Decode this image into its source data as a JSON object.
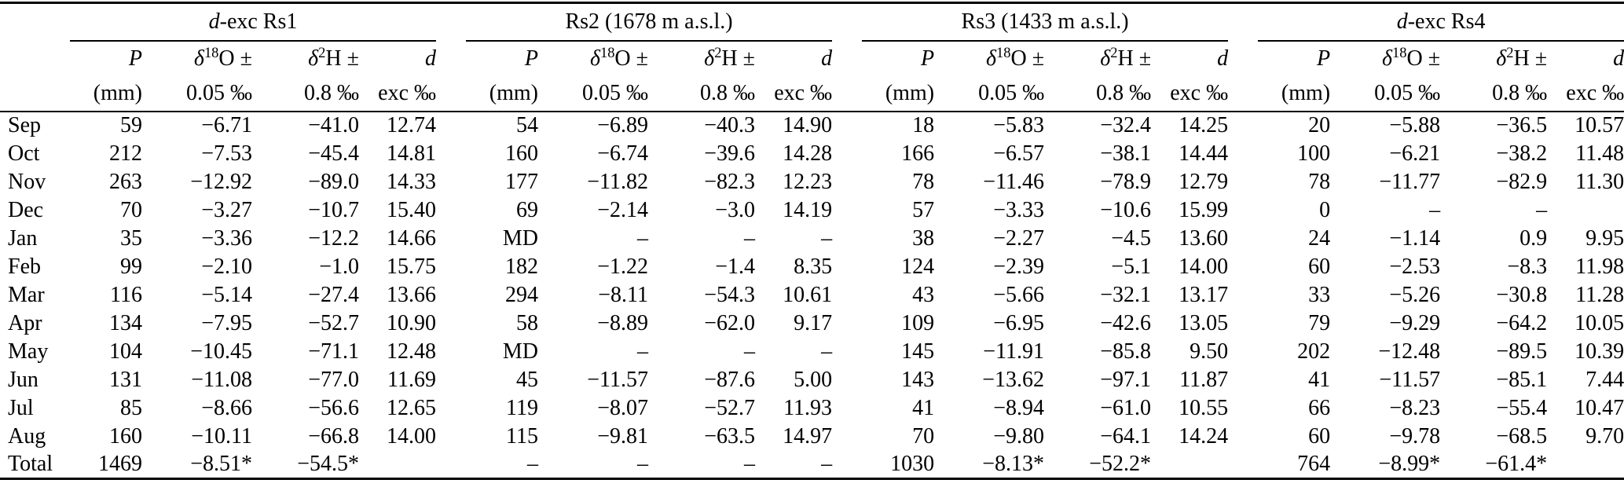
{
  "table": {
    "groups": [
      {
        "title_italic": "d",
        "title_rest": "-exc Rs1"
      },
      {
        "title_italic": "",
        "title_rest": "Rs2 (1678 m a.s.l.)"
      },
      {
        "title_italic": "",
        "title_rest": "Rs3 (1433 m a.s.l.)"
      },
      {
        "title_italic": "d",
        "title_rest": "-exc Rs4"
      }
    ],
    "col_headers": {
      "p": {
        "line1": "P",
        "line2": "(mm)"
      },
      "o18": {
        "pre": "δ",
        "sup": "18",
        "post": "O ±",
        "line2": "0.05 ‰"
      },
      "h2": {
        "pre": "δ",
        "sup": "2",
        "post": "H ±",
        "line2": "0.8 ‰"
      },
      "dexc": {
        "line1": "d",
        "line2": "exc ‰"
      }
    },
    "rows": [
      {
        "month": "Sep",
        "values": [
          "59",
          "−6.71",
          "−41.0",
          "12.74",
          "54",
          "−6.89",
          "−40.3",
          "14.90",
          "18",
          "−5.83",
          "−32.4",
          "14.25",
          "20",
          "−5.88",
          "−36.5",
          "10.57"
        ]
      },
      {
        "month": "Oct",
        "values": [
          "212",
          "−7.53",
          "−45.4",
          "14.81",
          "160",
          "−6.74",
          "−39.6",
          "14.28",
          "166",
          "−6.57",
          "−38.1",
          "14.44",
          "100",
          "−6.21",
          "−38.2",
          "11.48"
        ]
      },
      {
        "month": "Nov",
        "values": [
          "263",
          "−12.92",
          "−89.0",
          "14.33",
          "177",
          "−11.82",
          "−82.3",
          "12.23",
          "78",
          "−11.46",
          "−78.9",
          "12.79",
          "78",
          "−11.77",
          "−82.9",
          "11.30"
        ]
      },
      {
        "month": "Dec",
        "values": [
          "70",
          "−3.27",
          "−10.7",
          "15.40",
          "69",
          "−2.14",
          "−3.0",
          "14.19",
          "57",
          "−3.33",
          "−10.6",
          "15.99",
          "0",
          "–",
          "–",
          ""
        ]
      },
      {
        "month": "Jan",
        "values": [
          "35",
          "−3.36",
          "−12.2",
          "14.66",
          "MD",
          "–",
          "–",
          "–",
          "38",
          "−2.27",
          "−4.5",
          "13.60",
          "24",
          "−1.14",
          "0.9",
          "9.95"
        ]
      },
      {
        "month": "Feb",
        "values": [
          "99",
          "−2.10",
          "−1.0",
          "15.75",
          "182",
          "−1.22",
          "−1.4",
          "8.35",
          "124",
          "−2.39",
          "−5.1",
          "14.00",
          "60",
          "−2.53",
          "−8.3",
          "11.98"
        ]
      },
      {
        "month": "Mar",
        "values": [
          "116",
          "−5.14",
          "−27.4",
          "13.66",
          "294",
          "−8.11",
          "−54.3",
          "10.61",
          "43",
          "−5.66",
          "−32.1",
          "13.17",
          "33",
          "−5.26",
          "−30.8",
          "11.28"
        ]
      },
      {
        "month": "Apr",
        "values": [
          "134",
          "−7.95",
          "−52.7",
          "10.90",
          "58",
          "−8.89",
          "−62.0",
          "9.17",
          "109",
          "−6.95",
          "−42.6",
          "13.05",
          "79",
          "−9.29",
          "−64.2",
          "10.05"
        ]
      },
      {
        "month": "May",
        "values": [
          "104",
          "−10.45",
          "−71.1",
          "12.48",
          "MD",
          "–",
          "–",
          "–",
          "145",
          "−11.91",
          "−85.8",
          "9.50",
          "202",
          "−12.48",
          "−89.5",
          "10.39"
        ]
      },
      {
        "month": "Jun",
        "values": [
          "131",
          "−11.08",
          "−77.0",
          "11.69",
          "45",
          "−11.57",
          "−87.6",
          "5.00",
          "143",
          "−13.62",
          "−97.1",
          "11.87",
          "41",
          "−11.57",
          "−85.1",
          "7.44"
        ]
      },
      {
        "month": "Jul",
        "values": [
          "85",
          "−8.66",
          "−56.6",
          "12.65",
          "119",
          "−8.07",
          "−52.7",
          "11.93",
          "41",
          "−8.94",
          "−61.0",
          "10.55",
          "66",
          "−8.23",
          "−55.4",
          "10.47"
        ]
      },
      {
        "month": "Aug",
        "values": [
          "160",
          "−10.11",
          "−66.8",
          "14.00",
          "115",
          "−9.81",
          "−63.5",
          "14.97",
          "70",
          "−9.80",
          "−64.1",
          "14.24",
          "60",
          "−9.78",
          "−68.5",
          "9.70"
        ]
      },
      {
        "month": "Total",
        "values": [
          "1469",
          "−8.51*",
          "−54.5*",
          "",
          "–",
          "–",
          "–",
          "–",
          "1030",
          "−8.13*",
          "−52.2*",
          "",
          "764",
          "−8.99*",
          "−61.4*",
          ""
        ]
      }
    ]
  }
}
